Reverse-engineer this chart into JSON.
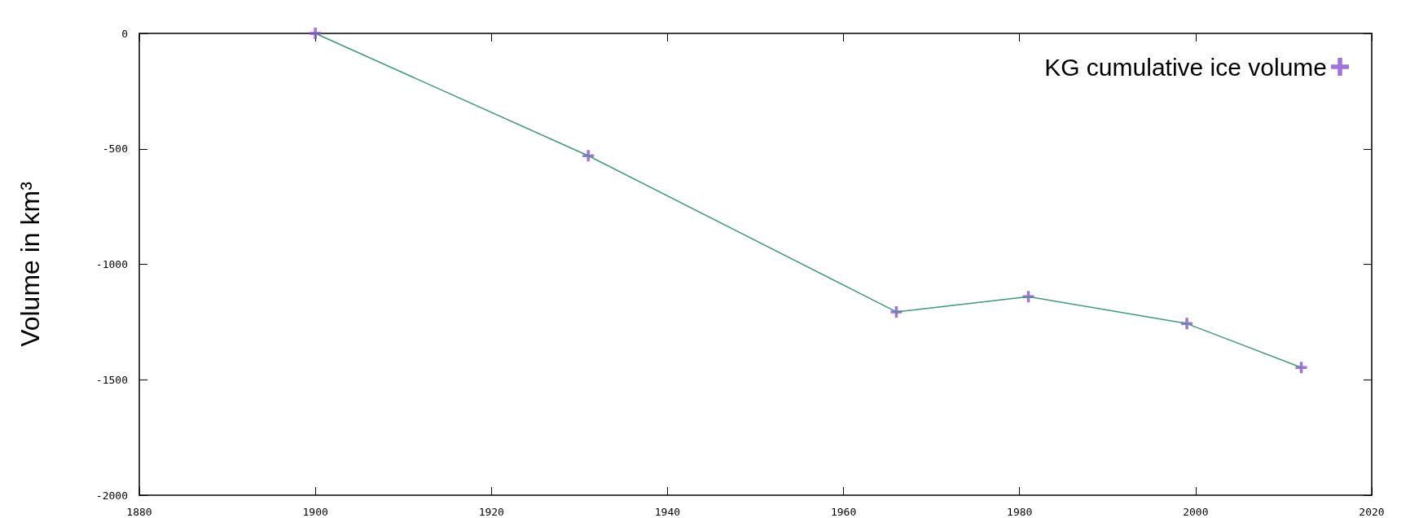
{
  "chart_data": {
    "type": "line",
    "ylabel": "Volume in km³",
    "x": [
      1900,
      1931,
      1966,
      1981,
      1999,
      2012
    ],
    "series": [
      {
        "color": "#3f9a78",
        "marker": "none",
        "values": [
          0,
          -530,
          -1206,
          -1140,
          -1257,
          -1447
        ]
      },
      {
        "type": "scatter",
        "name": "KG cumulative ice volume",
        "color": "#8a4fd8",
        "marker": "cross",
        "values": [
          0,
          -530,
          -1206,
          -1140,
          -1257,
          -1447
        ]
      }
    ],
    "xlim": [
      1880,
      2020
    ],
    "xticks": [
      1880,
      1900,
      1920,
      1940,
      1960,
      1980,
      2000,
      2020
    ],
    "ylim": [
      -2000,
      0
    ],
    "yticks": [
      -2000,
      -1500,
      -1000,
      -500,
      0
    ],
    "grid": false,
    "legend": "top right"
  }
}
